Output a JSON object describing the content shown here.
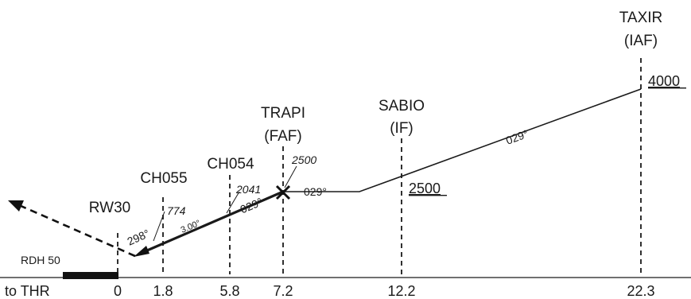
{
  "waypoints": [
    {
      "id": "rw30",
      "name": "RW30"
    },
    {
      "id": "ch055",
      "name": "CH055",
      "altitude": "774"
    },
    {
      "id": "ch054",
      "name": "CH054",
      "altitude": "2041"
    },
    {
      "id": "trapi",
      "name": "TRAPI",
      "role": "(FAF)",
      "altitude": "2500"
    },
    {
      "id": "sabio",
      "name": "SABIO",
      "role": "(IF)",
      "altitude": "2500"
    },
    {
      "id": "taxir",
      "name": "TAXIR",
      "role": "(IAF)",
      "altitude": "4000"
    }
  ],
  "distances": {
    "label": "to THR",
    "values": [
      "0",
      "1.8",
      "5.8",
      "7.2",
      "12.2",
      "22.3"
    ]
  },
  "rdh": "RDH 50",
  "courses": {
    "missed": "298°",
    "final": "029°",
    "level": "029°",
    "initial": "029°"
  },
  "glidepath": "3.00°"
}
